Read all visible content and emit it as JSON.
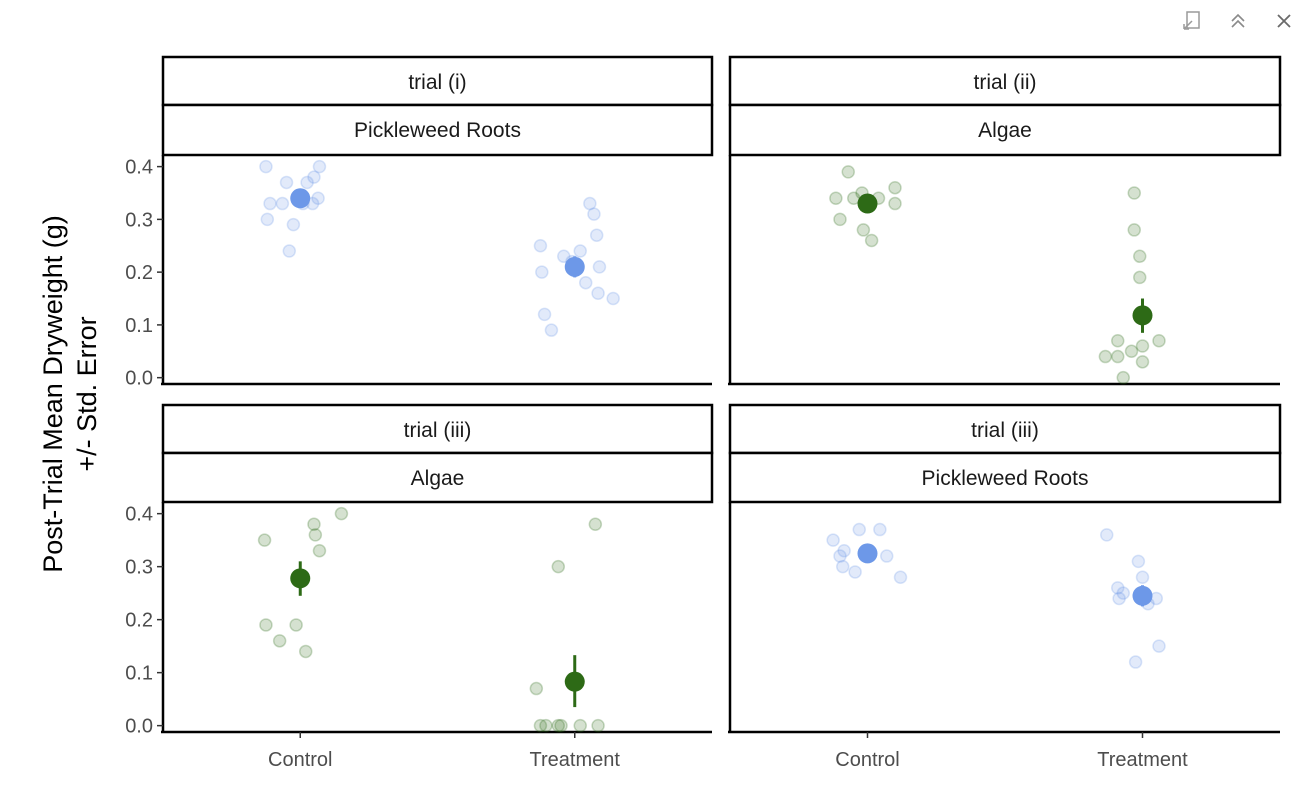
{
  "toolbar": {
    "icons": [
      "export-icon",
      "collapse-icon",
      "close-icon"
    ]
  },
  "chart_data": {
    "type": "scatter",
    "ylabel": [
      "Post-Trial Mean Dryweight (g)",
      "+/- Std. Error"
    ],
    "x_categories": [
      "Control",
      "Treatment"
    ],
    "y_ticks": [
      0.0,
      0.1,
      0.2,
      0.3,
      0.4
    ],
    "y_tick_labels": [
      "0.0",
      "0.1",
      "0.2",
      "0.3",
      "0.4"
    ],
    "ylim": [
      -0.012,
      0.422
    ],
    "colors": {
      "Pickleweed Roots": "#6d98e8",
      "Algae": "#2d6a16"
    },
    "panels": [
      {
        "trial": "trial (i)",
        "food": "Pickleweed Roots",
        "groups": [
          {
            "category": "Control",
            "mean": 0.34,
            "se_low": 0.33,
            "se_high": 0.35,
            "points": [
              [
                -0.25,
                0.4
              ],
              [
                -0.24,
                0.3
              ],
              [
                -0.22,
                0.33
              ],
              [
                -0.13,
                0.33
              ],
              [
                -0.1,
                0.37
              ],
              [
                -0.08,
                0.24
              ],
              [
                -0.05,
                0.29
              ],
              [
                0.02,
                0.33
              ],
              [
                0.05,
                0.37
              ],
              [
                0.1,
                0.38
              ],
              [
                0.13,
                0.34
              ],
              [
                0.14,
                0.4
              ],
              [
                0.09,
                0.33
              ]
            ]
          },
          {
            "category": "Treatment",
            "mean": 0.21,
            "se_low": 0.19,
            "se_high": 0.23,
            "points": [
              [
                -0.25,
                0.25
              ],
              [
                -0.24,
                0.2
              ],
              [
                -0.22,
                0.12
              ],
              [
                -0.17,
                0.09
              ],
              [
                -0.08,
                0.23
              ],
              [
                -0.02,
                0.22
              ],
              [
                0.04,
                0.24
              ],
              [
                0.08,
                0.18
              ],
              [
                0.11,
                0.33
              ],
              [
                0.14,
                0.31
              ],
              [
                0.16,
                0.27
              ],
              [
                0.18,
                0.21
              ],
              [
                0.17,
                0.16
              ],
              [
                0.28,
                0.15
              ]
            ]
          }
        ]
      },
      {
        "trial": "trial (ii)",
        "food": "Algae",
        "groups": [
          {
            "category": "Control",
            "mean": 0.33,
            "se_low": 0.315,
            "se_high": 0.345,
            "points": [
              [
                -0.23,
                0.34
              ],
              [
                -0.2,
                0.3
              ],
              [
                -0.14,
                0.39
              ],
              [
                -0.1,
                0.34
              ],
              [
                -0.04,
                0.35
              ],
              [
                -0.03,
                0.28
              ],
              [
                0.03,
                0.26
              ],
              [
                0.08,
                0.34
              ],
              [
                0.2,
                0.36
              ],
              [
                0.2,
                0.33
              ]
            ]
          },
          {
            "category": "Treatment",
            "mean": 0.118,
            "se_low": 0.085,
            "se_high": 0.15,
            "points": [
              [
                -0.27,
                0.04
              ],
              [
                -0.18,
                0.07
              ],
              [
                -0.18,
                0.04
              ],
              [
                -0.14,
                0.0
              ],
              [
                -0.08,
                0.05
              ],
              [
                -0.06,
                0.35
              ],
              [
                -0.06,
                0.28
              ],
              [
                -0.02,
                0.23
              ],
              [
                -0.02,
                0.19
              ],
              [
                0.0,
                0.06
              ],
              [
                0.0,
                0.03
              ],
              [
                0.12,
                0.07
              ]
            ]
          }
        ]
      },
      {
        "trial": "trial (iii)",
        "food": "Algae",
        "groups": [
          {
            "category": "Control",
            "mean": 0.278,
            "se_low": 0.245,
            "se_high": 0.31,
            "points": [
              [
                -0.26,
                0.35
              ],
              [
                -0.25,
                0.19
              ],
              [
                -0.15,
                0.16
              ],
              [
                -0.03,
                0.19
              ],
              [
                0.04,
                0.14
              ],
              [
                0.1,
                0.38
              ],
              [
                0.11,
                0.36
              ],
              [
                0.14,
                0.33
              ],
              [
                0.3,
                0.4
              ]
            ]
          },
          {
            "category": "Treatment",
            "mean": 0.083,
            "se_low": 0.035,
            "se_high": 0.133,
            "points": [
              [
                -0.28,
                0.07
              ],
              [
                -0.25,
                0.0
              ],
              [
                -0.21,
                0.0
              ],
              [
                -0.12,
                0.0
              ],
              [
                -0.1,
                0.0
              ],
              [
                -0.12,
                0.3
              ],
              [
                0.04,
                0.0
              ],
              [
                0.15,
                0.38
              ],
              [
                0.17,
                0.0
              ]
            ]
          }
        ]
      },
      {
        "trial": "trial (iii)",
        "food": "Pickleweed Roots",
        "groups": [
          {
            "category": "Control",
            "mean": 0.325,
            "se_low": 0.31,
            "se_high": 0.34,
            "points": [
              [
                -0.25,
                0.35
              ],
              [
                -0.2,
                0.32
              ],
              [
                -0.18,
                0.3
              ],
              [
                -0.17,
                0.33
              ],
              [
                -0.09,
                0.29
              ],
              [
                -0.06,
                0.37
              ],
              [
                0.09,
                0.37
              ],
              [
                0.14,
                0.32
              ],
              [
                0.24,
                0.28
              ]
            ]
          },
          {
            "category": "Treatment",
            "mean": 0.245,
            "se_low": 0.225,
            "se_high": 0.265,
            "points": [
              [
                -0.26,
                0.36
              ],
              [
                -0.18,
                0.26
              ],
              [
                -0.17,
                0.24
              ],
              [
                -0.14,
                0.25
              ],
              [
                -0.05,
                0.12
              ],
              [
                -0.03,
                0.31
              ],
              [
                0.0,
                0.28
              ],
              [
                0.04,
                0.23
              ],
              [
                0.12,
                0.15
              ],
              [
                0.1,
                0.24
              ]
            ]
          }
        ]
      }
    ]
  }
}
